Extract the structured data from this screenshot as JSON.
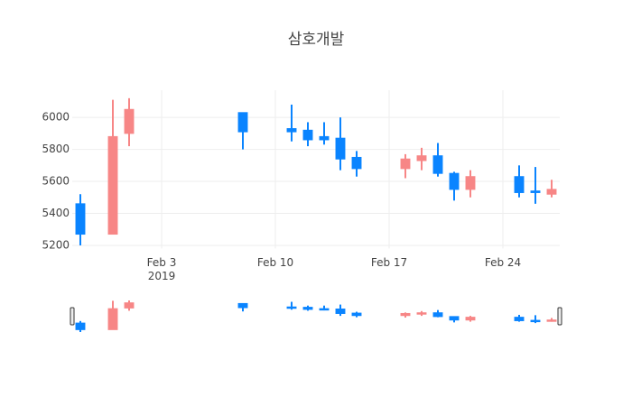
{
  "chart_data": {
    "type": "candlestick",
    "title": "삼호개발",
    "x": [
      "2019-01-29",
      "2019-01-31",
      "2019-02-01",
      "2019-02-08",
      "2019-02-11",
      "2019-02-12",
      "2019-02-13",
      "2019-02-14",
      "2019-02-15",
      "2019-02-18",
      "2019-02-19",
      "2019-02-20",
      "2019-02-21",
      "2019-02-22",
      "2019-02-25",
      "2019-02-26",
      "2019-02-27"
    ],
    "open": [
      5460,
      5270,
      5900,
      6030,
      5930,
      5920,
      5880,
      5870,
      5750,
      5680,
      5730,
      5760,
      5650,
      5550,
      5630,
      5540,
      5520
    ],
    "high": [
      5520,
      6110,
      6120,
      6030,
      6080,
      5970,
      5970,
      6000,
      5790,
      5770,
      5810,
      5840,
      5660,
      5670,
      5700,
      5690,
      5610
    ],
    "low": [
      5200,
      5270,
      5820,
      5800,
      5850,
      5820,
      5830,
      5670,
      5630,
      5620,
      5670,
      5630,
      5480,
      5500,
      5500,
      5460,
      5500
    ],
    "close": [
      5270,
      5880,
      6050,
      5910,
      5910,
      5860,
      5860,
      5740,
      5680,
      5740,
      5760,
      5650,
      5550,
      5630,
      5530,
      5530,
      5550
    ],
    "increasing_color": "#f78686",
    "decreasing_color": "#0a84ff",
    "xlim": [
      "2019-01-28T12:00",
      "2019-02-27T12:00"
    ],
    "xticks": [
      {
        "value": "2019-02-03",
        "label": "Feb 3"
      },
      {
        "value": "2019-02-10",
        "label": "Feb 10"
      },
      {
        "value": "2019-02-17",
        "label": "Feb 17"
      },
      {
        "value": "2019-02-24",
        "label": "Feb 24"
      }
    ],
    "x_year_label": "2019",
    "ylim": [
      5180,
      6170
    ],
    "yticks": [
      5200,
      5400,
      5600,
      5800,
      6000
    ],
    "grid": true,
    "rangeslider": true
  }
}
